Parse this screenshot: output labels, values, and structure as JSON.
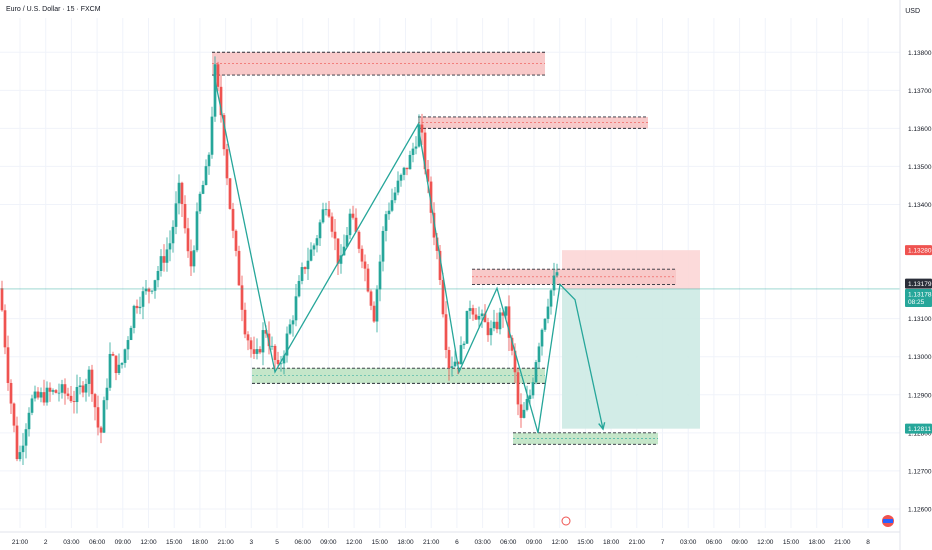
{
  "header": {
    "symbol_title": "Euro / U.S. Dollar · 15 · FXCM",
    "currency": "USD"
  },
  "colors": {
    "up": "#26a69a",
    "down": "#ef5350",
    "supply_fill": "#f8c9c9",
    "demand_fill": "#c5e6c9",
    "zigzag": "#26a69a",
    "stop_zone": "#fbd3d3",
    "target_zone": "#cdeae4",
    "current_price_line": "#26a69a",
    "grid": "#f0f3fa"
  },
  "chart_data": {
    "type": "candlestick",
    "title": "Euro / U.S. Dollar · 15 · FXCM",
    "y_unit": "USD",
    "ylim": [
      1.1255,
      1.1389
    ],
    "y_ticks": [
      "1.12600",
      "1.12700",
      "1.12800",
      "1.12900",
      "1.13000",
      "1.13100",
      "1.13400",
      "1.13500",
      "1.13600",
      "1.13700",
      "1.13800"
    ],
    "x_ticks": [
      "21:00",
      "2",
      "03:00",
      "06:00",
      "09:00",
      "12:00",
      "15:00",
      "18:00",
      "21:00",
      "3",
      "5",
      "06:00",
      "09:00",
      "12:00",
      "15:00",
      "18:00",
      "21:00",
      "6",
      "03:00",
      "06:00",
      "09:00",
      "12:00",
      "15:00",
      "18:00",
      "21:00",
      "7",
      "03:00",
      "06:00",
      "09:00",
      "12:00",
      "15:00",
      "18:00",
      "21:00",
      "8"
    ],
    "price_tags": [
      {
        "label": "1.13280",
        "price": 1.1328,
        "color": "#ef5350"
      },
      {
        "label": "1.13179",
        "price": 1.13179,
        "color": "#2a2e39"
      },
      {
        "label": "1.13178",
        "sub": "08:25",
        "price": 1.13178,
        "color": "#26a69a"
      },
      {
        "label": "1.12811",
        "price": 1.12811,
        "color": "#26a69a"
      }
    ],
    "candles_anchor_path": [
      [
        0,
        1.1318
      ],
      [
        8,
        1.1295
      ],
      [
        18,
        1.1272
      ],
      [
        30,
        1.1288
      ],
      [
        45,
        1.129
      ],
      [
        60,
        1.1291
      ],
      [
        75,
        1.1289
      ],
      [
        90,
        1.1296
      ],
      [
        100,
        1.1278
      ],
      [
        110,
        1.13
      ],
      [
        120,
        1.1296
      ],
      [
        135,
        1.1314
      ],
      [
        150,
        1.1318
      ],
      [
        160,
        1.1324
      ],
      [
        170,
        1.133
      ],
      [
        180,
        1.1345
      ],
      [
        190,
        1.1322
      ],
      [
        200,
        1.1342
      ],
      [
        208,
        1.135
      ],
      [
        215,
        1.1375
      ],
      [
        222,
        1.1362
      ],
      [
        232,
        1.1334
      ],
      [
        245,
        1.1308
      ],
      [
        255,
        1.1298
      ],
      [
        265,
        1.1308
      ],
      [
        278,
        1.1296
      ],
      [
        292,
        1.131
      ],
      [
        303,
        1.1323
      ],
      [
        315,
        1.133
      ],
      [
        327,
        1.1342
      ],
      [
        340,
        1.1323
      ],
      [
        350,
        1.1337
      ],
      [
        362,
        1.1327
      ],
      [
        374,
        1.1311
      ],
      [
        385,
        1.1337
      ],
      [
        398,
        1.1345
      ],
      [
        410,
        1.1352
      ],
      [
        420,
        1.1361
      ],
      [
        430,
        1.134
      ],
      [
        440,
        1.1322
      ],
      [
        448,
        1.1298
      ],
      [
        460,
        1.13
      ],
      [
        470,
        1.1314
      ],
      [
        480,
        1.131
      ],
      [
        492,
        1.1306
      ],
      [
        505,
        1.1313
      ],
      [
        515,
        1.1295
      ],
      [
        520,
        1.1282
      ],
      [
        530,
        1.129
      ],
      [
        538,
        1.1303
      ],
      [
        548,
        1.1315
      ],
      [
        558,
        1.1323
      ]
    ]
  },
  "annotations": {
    "supply_zones": [
      {
        "from": 212,
        "to": 545,
        "high": 1.138,
        "low": 1.1374
      },
      {
        "from": 418,
        "to": 648,
        "high": 1.1363,
        "low": 1.136
      },
      {
        "from": 472,
        "to": 676,
        "high": 1.1323,
        "low": 1.1319
      }
    ],
    "demand_zones": [
      {
        "from": 252,
        "to": 545,
        "high": 1.1297,
        "low": 1.1293
      },
      {
        "from": 513,
        "to": 658,
        "high": 1.128,
        "low": 1.1277
      }
    ],
    "zigzag": [
      [
        214,
        1.1374
      ],
      [
        275,
        1.1296
      ],
      [
        418,
        1.1361
      ],
      [
        459,
        1.1296
      ],
      [
        497,
        1.1318
      ],
      [
        538,
        1.128
      ],
      [
        560,
        1.1319
      ],
      [
        575,
        1.1315
      ],
      [
        603,
        1.1281
      ]
    ],
    "position": {
      "from": 562,
      "to": 700,
      "entry": 1.13178,
      "stop": 1.1328,
      "target": 1.12811
    }
  },
  "timestamp": "08:25"
}
